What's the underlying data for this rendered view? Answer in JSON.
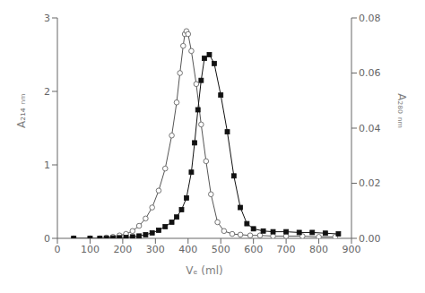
{
  "chart_data": {
    "type": "line",
    "xlabel": "Vₑ (ml)",
    "ylabel": "A₂₁₄ ₙₘ",
    "y2label": "A₂₈₀ ₙₘ",
    "xlim": [
      0,
      900
    ],
    "xticks": [
      0,
      100,
      200,
      300,
      400,
      500,
      600,
      700,
      800,
      900
    ],
    "ylim": [
      0,
      3
    ],
    "yticks": [
      0,
      1,
      2,
      3
    ],
    "y2lim": [
      0,
      0.08
    ],
    "y2ticks": [
      {
        "value": 0,
        "label": "0.00"
      },
      0.02,
      0.04,
      0.06,
      0.08
    ],
    "grid": false,
    "series": [
      {
        "color": "#555555",
        "marker": "open_circle",
        "x": [
          50,
          100,
          130,
          150,
          170,
          190,
          210,
          230,
          250,
          270,
          290,
          310,
          330,
          350,
          365,
          375,
          385,
          390,
          395,
          400,
          410,
          425,
          440,
          455,
          470,
          490,
          510,
          535,
          560,
          590,
          620,
          660,
          700,
          750,
          800,
          850
        ],
        "values": [
          0,
          0,
          0,
          0.01,
          0.02,
          0.04,
          0.06,
          0.1,
          0.17,
          0.27,
          0.42,
          0.65,
          0.95,
          1.4,
          1.85,
          2.25,
          2.62,
          2.78,
          2.82,
          2.78,
          2.55,
          2.1,
          1.55,
          1.05,
          0.6,
          0.22,
          0.1,
          0.06,
          0.05,
          0.04,
          0.04,
          0.03,
          0.03,
          0.03,
          0.02,
          0.02
        ]
      },
      {
        "color": "#111111",
        "marker": "filled_square",
        "x": [
          50,
          100,
          130,
          150,
          170,
          190,
          210,
          230,
          250,
          270,
          290,
          310,
          330,
          350,
          365,
          380,
          395,
          410,
          420,
          430,
          440,
          450,
          465,
          480,
          500,
          520,
          540,
          560,
          580,
          600,
          630,
          660,
          700,
          740,
          780,
          820,
          860
        ],
        "values": [
          0,
          0,
          0,
          0.003,
          0.005,
          0.008,
          0.012,
          0.02,
          0.032,
          0.05,
          0.075,
          0.11,
          0.16,
          0.22,
          0.29,
          0.39,
          0.55,
          0.9,
          1.3,
          1.75,
          2.15,
          2.45,
          2.5,
          2.38,
          1.95,
          1.45,
          0.85,
          0.42,
          0.2,
          0.13,
          0.1,
          0.09,
          0.09,
          0.08,
          0.08,
          0.07,
          0.06
        ]
      }
    ]
  }
}
